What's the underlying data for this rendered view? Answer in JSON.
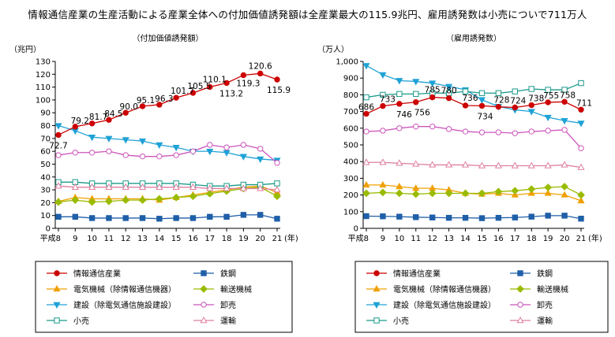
{
  "headline": "情報通信産業の生産活動による産業全体への付加価値誘発額は全産業最大の115.9兆円、雇用誘発数は小売についで711万人",
  "chart_data": [
    {
      "type": "line",
      "title": "（付加価値誘発額）",
      "unit_label": "（兆円）",
      "x_era_prefix": "平成",
      "x_unit_label": "(年)",
      "categories": [
        "8",
        "9",
        "10",
        "11",
        "12",
        "13",
        "14",
        "15",
        "16",
        "17",
        "18",
        "19",
        "20",
        "21"
      ],
      "ylim": [
        0,
        130
      ],
      "yticks": [
        "0",
        "10",
        "20",
        "30",
        "40",
        "50",
        "60",
        "70",
        "80",
        "90",
        "100",
        "110",
        "120",
        "130"
      ],
      "ytick_values": [
        0,
        10,
        20,
        30,
        40,
        50,
        60,
        70,
        80,
        90,
        100,
        110,
        120,
        130
      ],
      "grid": false,
      "series": [
        {
          "name": "情報通信産業",
          "color": "#cc0000",
          "marker": "circle-filled",
          "values": [
            72.7,
            79.2,
            81.7,
            84.5,
            90.0,
            95.1,
            96.3,
            101.7,
            105.5,
            110.1,
            113.2,
            119.3,
            120.6,
            115.9
          ],
          "labels": [
            "72.7",
            "79.2",
            "81.7",
            "84.5",
            "90.0",
            "95.1",
            "96.3",
            "101.7",
            "105.5",
            "110.1",
            "113.2",
            "119.3",
            "120.6",
            "115.9"
          ]
        },
        {
          "name": "鉄鋼",
          "color": "#1f5fa8",
          "marker": "square-filled",
          "values": [
            9,
            9,
            8,
            8,
            8,
            8,
            7.5,
            8,
            8,
            9,
            9,
            10.5,
            10.5,
            7.5
          ]
        },
        {
          "name": "電気機械（除情報通信機器）",
          "color": "#f0a000",
          "marker": "triangle-filled",
          "values": [
            21,
            24,
            23,
            23,
            23,
            23,
            22,
            24,
            26,
            28,
            30,
            32,
            33,
            28
          ]
        },
        {
          "name": "輸送機械",
          "color": "#99bb00",
          "marker": "diamond-filled",
          "values": [
            20.5,
            22,
            20.5,
            21,
            22,
            22,
            23,
            24,
            25,
            27,
            29,
            31,
            32,
            25
          ]
        },
        {
          "name": "建設（除電気通信施設建設）",
          "color": "#1fa2d6",
          "marker": "triangle-down-filled",
          "values": [
            80,
            76,
            71,
            70,
            69,
            68,
            65,
            63,
            60,
            60,
            59,
            56,
            54,
            53
          ]
        },
        {
          "name": "卸売",
          "color": "#cc55bb",
          "marker": "circle-open",
          "values": [
            57,
            59,
            59,
            60,
            57,
            56,
            56,
            57,
            60,
            65,
            63,
            65,
            62,
            51
          ]
        },
        {
          "name": "小売",
          "color": "#1a9a8a",
          "marker": "square-open",
          "values": [
            36,
            36,
            35,
            35,
            35,
            35,
            35,
            35,
            34,
            33,
            33,
            34,
            34,
            35
          ]
        },
        {
          "name": "運輸",
          "color": "#e07fa0",
          "marker": "triangle-open",
          "values": [
            33,
            32,
            32,
            32,
            32,
            32,
            32,
            32,
            32,
            31,
            31,
            31,
            31,
            30
          ]
        }
      ]
    },
    {
      "type": "line",
      "title": "（雇用誘発数）",
      "unit_label": "（万人）",
      "x_era_prefix": "平成",
      "x_unit_label": "(年)",
      "categories": [
        "8",
        "9",
        "10",
        "11",
        "12",
        "13",
        "14",
        "15",
        "16",
        "17",
        "18",
        "19",
        "20",
        "21"
      ],
      "ylim": [
        0,
        1000
      ],
      "yticks": [
        "0",
        "100",
        "200",
        "300",
        "400",
        "500",
        "600",
        "700",
        "800",
        "900",
        "1,000"
      ],
      "ytick_values": [
        0,
        100,
        200,
        300,
        400,
        500,
        600,
        700,
        800,
        900,
        1000
      ],
      "grid": false,
      "series": [
        {
          "name": "情報通信産業",
          "color": "#cc0000",
          "marker": "circle-filled",
          "values": [
            686,
            733,
            746,
            756,
            785,
            780,
            736,
            734,
            728,
            724,
            738,
            755,
            758,
            711
          ],
          "labels": [
            "686",
            "733",
            "746",
            "756",
            "785",
            "780",
            "736",
            "734",
            "728",
            "724",
            "738",
            "755",
            "758",
            "711"
          ]
        },
        {
          "name": "鉄鋼",
          "color": "#1f5fa8",
          "marker": "square-filled",
          "values": [
            73,
            72,
            70,
            67,
            65,
            63,
            63,
            61,
            63,
            65,
            70,
            76,
            76,
            58
          ]
        },
        {
          "name": "電気機械（除情報通信機器）",
          "color": "#f0a000",
          "marker": "triangle-filled",
          "values": [
            260,
            260,
            250,
            240,
            240,
            230,
            210,
            205,
            210,
            200,
            210,
            210,
            200,
            165
          ]
        },
        {
          "name": "輸送機械",
          "color": "#99bb00",
          "marker": "diamond-filled",
          "values": [
            210,
            215,
            210,
            205,
            210,
            210,
            210,
            210,
            220,
            225,
            235,
            245,
            250,
            200
          ]
        },
        {
          "name": "建設（除電気通信施設建設）",
          "color": "#1fa2d6",
          "marker": "triangle-down-filled",
          "values": [
            975,
            920,
            885,
            880,
            870,
            850,
            830,
            770,
            730,
            710,
            700,
            665,
            645,
            630
          ]
        },
        {
          "name": "卸売",
          "color": "#cc55bb",
          "marker": "circle-open",
          "values": [
            580,
            585,
            600,
            610,
            610,
            595,
            580,
            575,
            575,
            570,
            580,
            585,
            590,
            480
          ]
        },
        {
          "name": "小売",
          "color": "#1a9a8a",
          "marker": "square-open",
          "values": [
            785,
            800,
            805,
            805,
            810,
            810,
            820,
            810,
            810,
            820,
            835,
            830,
            830,
            870
          ]
        },
        {
          "name": "運輸",
          "color": "#e07fa0",
          "marker": "triangle-open",
          "values": [
            395,
            395,
            390,
            385,
            380,
            380,
            380,
            375,
            375,
            375,
            375,
            375,
            380,
            365
          ]
        }
      ]
    }
  ]
}
